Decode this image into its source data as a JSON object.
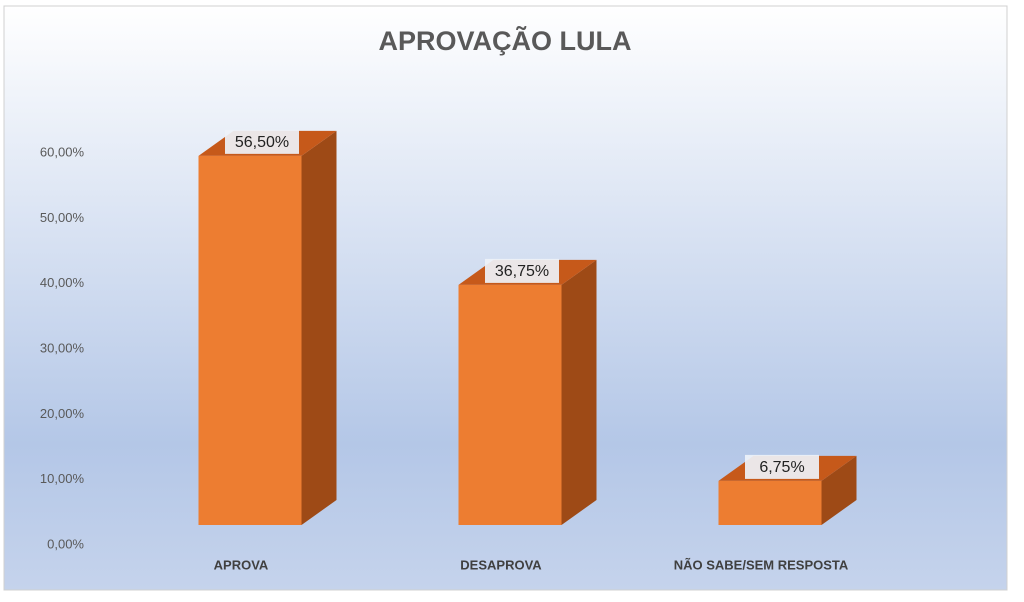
{
  "chart_data": {
    "type": "bar3d",
    "title": "APROVAÇÃO LULA",
    "categories": [
      "APROVA",
      "DESAPROVA",
      "NÃO SABE/SEM RESPOSTA"
    ],
    "values": [
      56.5,
      36.75,
      6.75
    ],
    "value_labels": [
      "56,50%",
      "36,75%",
      "6,75%"
    ],
    "color": "#ed7d31",
    "ylim": [
      0,
      60
    ],
    "yticks": [
      {
        "value": 0,
        "label": "0,00%"
      },
      {
        "value": 10,
        "label": "10,00%"
      },
      {
        "value": 20,
        "label": "20,00%"
      },
      {
        "value": 30,
        "label": "30,00%"
      },
      {
        "value": 40,
        "label": "40,00%"
      },
      {
        "value": 50,
        "label": "50,00%"
      },
      {
        "value": 60,
        "label": "60,00%"
      }
    ],
    "grid": false
  }
}
